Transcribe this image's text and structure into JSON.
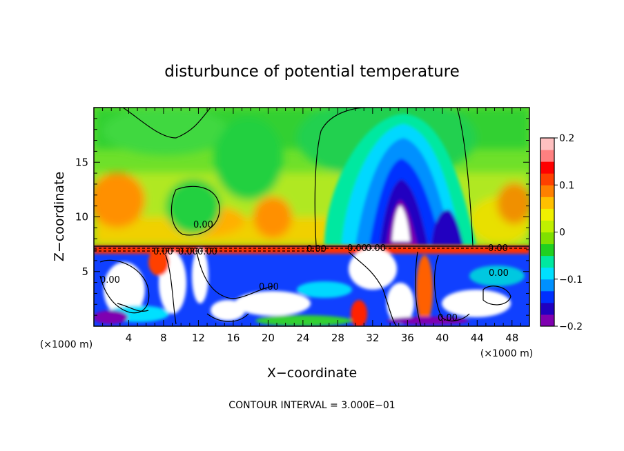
{
  "chart_data": {
    "type": "heatmap",
    "title": "disturbunce of potential temperature",
    "xlabel": "X−coordinate",
    "ylabel": "Z−coordinate",
    "x_unit": "(×1000 m)",
    "y_unit": "(×1000 m)",
    "x_ticks": [
      "4",
      "8",
      "12",
      "16",
      "20",
      "24",
      "28",
      "32",
      "36",
      "40",
      "44",
      "48"
    ],
    "y_ticks": [
      "5",
      "10",
      "15"
    ],
    "xlim": [
      0,
      50
    ],
    "ylim": [
      0,
      20
    ],
    "colorbar": {
      "range": [
        -0.2,
        0.2
      ],
      "tick_labels": [
        "0.2",
        "0.1",
        "0",
        "−0.1",
        "−0.2"
      ],
      "colors": [
        "#7f00b0",
        "#2000c0",
        "#0030ff",
        "#0090ff",
        "#00e0ff",
        "#00e8a0",
        "#20d020",
        "#80e000",
        "#c0f000",
        "#f0f000",
        "#ffc000",
        "#ff8000",
        "#ff4000",
        "#ff0000",
        "#ff8080",
        "#ffc0c0"
      ]
    },
    "contour_labels": [
      {
        "text": "0.00",
        "x": 10.5,
        "z": 9.0
      },
      {
        "text": "0.00",
        "x": 26.0,
        "z": 7.2
      },
      {
        "text": "0.00",
        "x": 30.5,
        "z": 7.2
      },
      {
        "text": "0.00",
        "x": 32.5,
        "z": 7.2
      },
      {
        "text": "0.00",
        "x": 45.0,
        "z": 7.2
      },
      {
        "text": "0.00",
        "x": 1.5,
        "z": 4.0
      },
      {
        "text": "0.00",
        "x": 19.5,
        "z": 3.6
      },
      {
        "text": "0.00",
        "x": 45.0,
        "z": 5.0
      },
      {
        "text": "0.00",
        "x": 40.5,
        "z": 0.6
      },
      {
        "text": "0.00",
        "x": 7.5,
        "z": 6.8
      },
      {
        "text": "0.00",
        "x": 10.0,
        "z": 6.8
      },
      {
        "text": "0.00",
        "x": 12.5,
        "z": 6.8
      }
    ],
    "contour_interval_label": "CONTOUR INTERVAL = 3.000E−01"
  }
}
